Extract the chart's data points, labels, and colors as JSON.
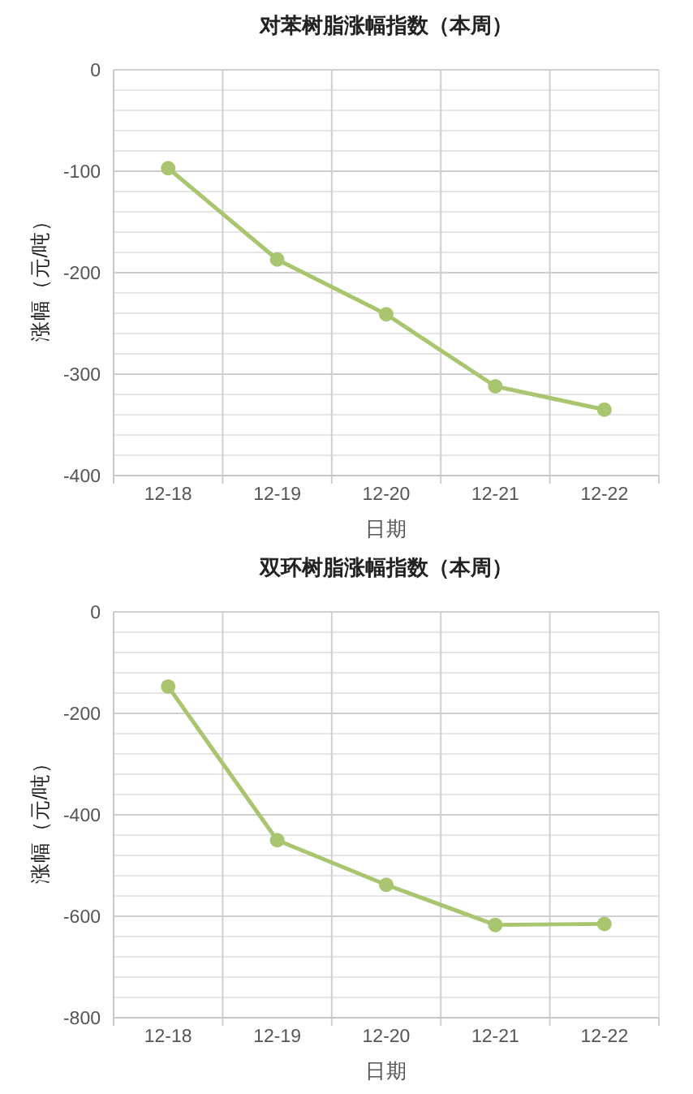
{
  "chart_data": [
    {
      "type": "line",
      "title": "对苯树脂涨幅指数（本周）",
      "xlabel": "日期",
      "ylabel": "涨幅（元/吨）",
      "categories": [
        "12-18",
        "12-19",
        "12-20",
        "12-21",
        "12-22"
      ],
      "series": [
        {
          "color": "#aac56f",
          "values": [
            -97,
            -187,
            -241,
            -312,
            -335
          ]
        }
      ],
      "ylim": [
        -400,
        0
      ],
      "yticks": [
        -400,
        {
          "value": -380,
          "label": null
        },
        {
          "value": -360,
          "label": null
        },
        {
          "value": -340,
          "label": null
        },
        {
          "value": -320,
          "label": null
        },
        -300,
        {
          "value": -280,
          "label": null
        },
        {
          "value": -260,
          "label": null
        },
        {
          "value": -240,
          "label": null
        },
        {
          "value": -220,
          "label": null
        },
        -200,
        {
          "value": -180,
          "label": null
        },
        {
          "value": -160,
          "label": null
        },
        {
          "value": -140,
          "label": null
        },
        {
          "value": -120,
          "label": null
        },
        -100,
        {
          "value": -80,
          "label": null
        },
        {
          "value": -60,
          "label": null
        },
        {
          "value": -40,
          "label": null
        },
        {
          "value": -20,
          "label": null
        },
        0
      ],
      "grid": true,
      "marker": "circle",
      "line_style": "solid"
    },
    {
      "type": "line",
      "title": "双环树脂涨幅指数（本周）",
      "xlabel": "日期",
      "ylabel": "涨幅（元/吨）",
      "categories": [
        "12-18",
        "12-19",
        "12-20",
        "12-21",
        "12-22"
      ],
      "series": [
        {
          "color": "#aac56f",
          "values": [
            -147,
            -450,
            -538,
            -617,
            -615
          ]
        }
      ],
      "ylim": [
        -800,
        0
      ],
      "yticks": [
        -800,
        {
          "value": -760,
          "label": null
        },
        {
          "value": -720,
          "label": null
        },
        {
          "value": -680,
          "label": null
        },
        {
          "value": -640,
          "label": null
        },
        -600,
        {
          "value": -560,
          "label": null
        },
        {
          "value": -520,
          "label": null
        },
        {
          "value": -480,
          "label": null
        },
        {
          "value": -440,
          "label": null
        },
        -400,
        {
          "value": -360,
          "label": null
        },
        {
          "value": -320,
          "label": null
        },
        {
          "value": -280,
          "label": null
        },
        {
          "value": -240,
          "label": null
        },
        -200,
        {
          "value": -160,
          "label": null
        },
        {
          "value": -120,
          "label": null
        },
        {
          "value": -80,
          "label": null
        },
        {
          "value": -40,
          "label": null
        },
        0
      ],
      "grid": true,
      "marker": "circle",
      "line_style": "solid"
    }
  ]
}
